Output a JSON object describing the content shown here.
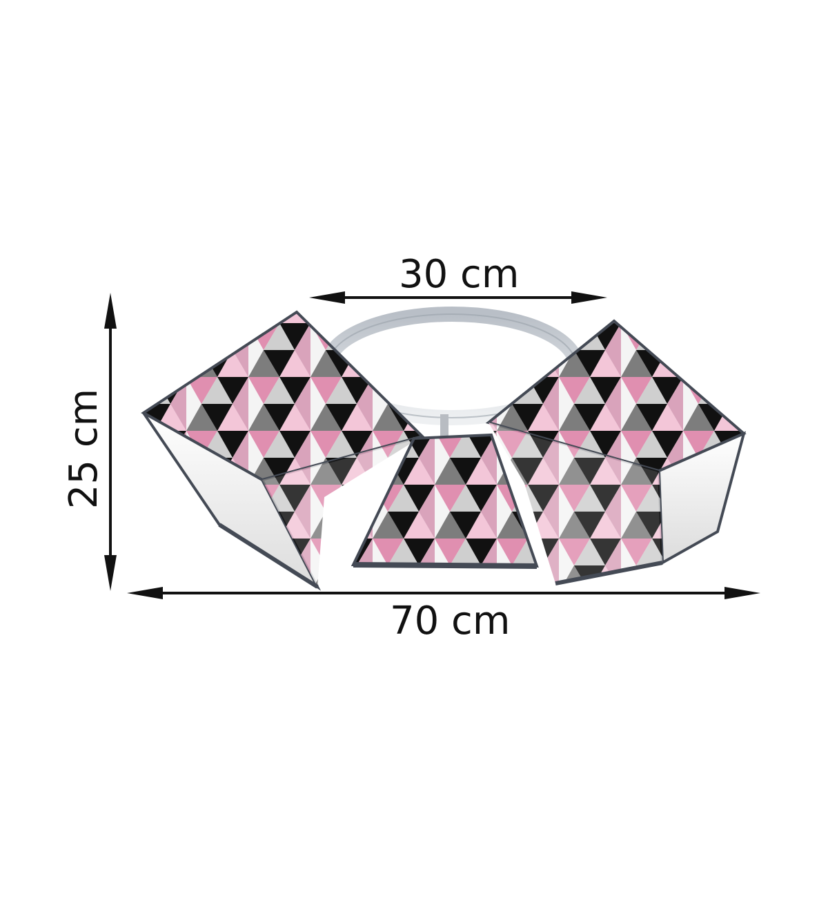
{
  "dimensions": {
    "width_top": "30 cm",
    "height_left": "25 cm",
    "width_bottom": "70 cm"
  },
  "colors": {
    "pink": "#e08fb0",
    "light_pink": "#f3c6d8",
    "black": "#111111",
    "grey": "#7d7d7d",
    "light_grey": "#cfcfcf",
    "frame": "#444a55"
  },
  "product": {
    "description_icon": "triangle-pattern-ceiling-lamp"
  }
}
